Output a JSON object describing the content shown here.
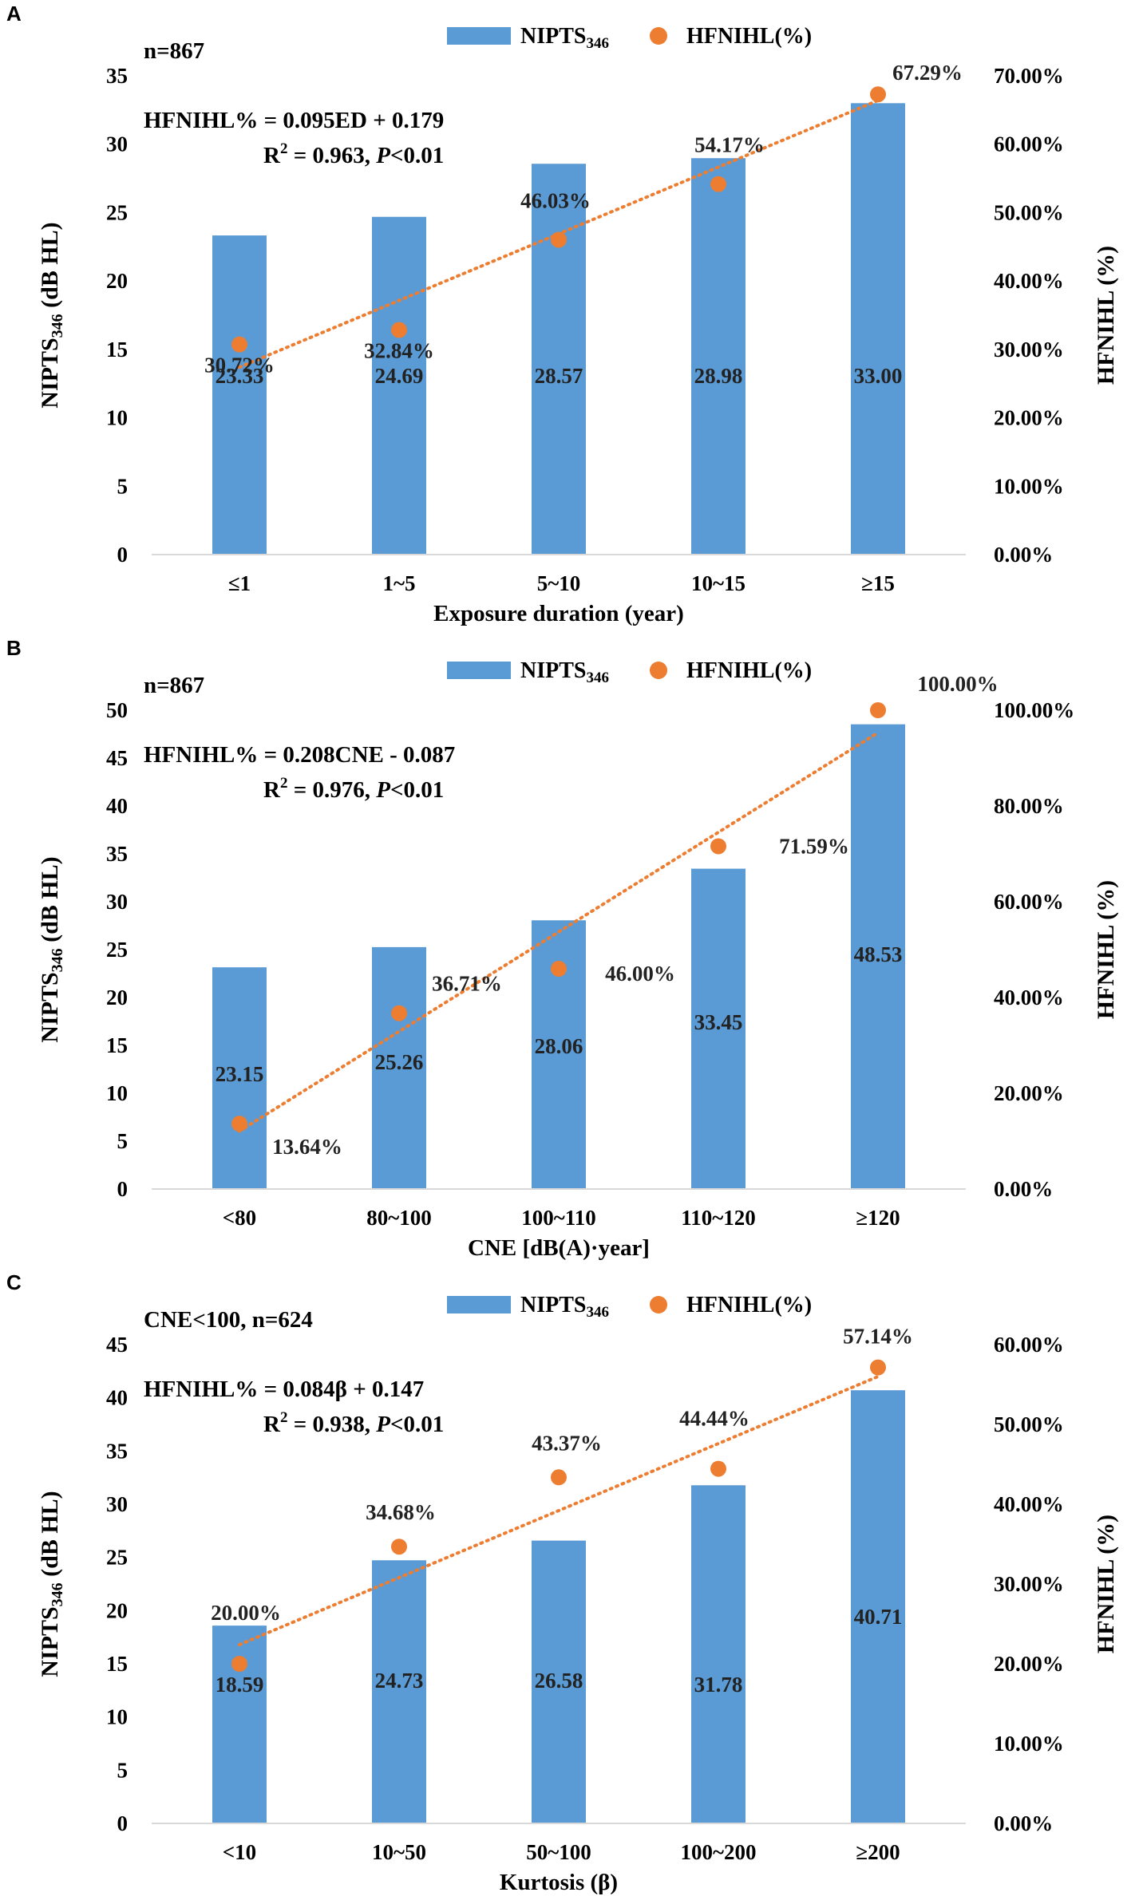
{
  "chart_data": [
    {
      "panel_label": "A",
      "type": "bar+line",
      "sample_text": "n=867",
      "equation": "HFNIHL% = 0.095ED + 0.179",
      "r2_label": "R",
      "r2_sup": "2",
      "r2_rest": " = 0.963, ",
      "p_italic": "P",
      "p_rest": "<0.01",
      "xlabel": "Exposure duration (year)",
      "ylabel_left_main": "NIPTS",
      "ylabel_left_sub": "346",
      "ylabel_left_rest": " (dB HL)",
      "ylabel_right": "HFNIHL (%)",
      "legend_bar_main": "NIPTS",
      "legend_bar_sub": "346",
      "legend_line": "HFNIHL(%)",
      "categories": [
        "≤1",
        "1~5",
        "5~10",
        "10~15",
        "≥15"
      ],
      "bar_values": [
        23.33,
        24.69,
        28.57,
        28.98,
        33.0
      ],
      "bar_labels": [
        "23.33",
        "24.69",
        "28.57",
        "28.98",
        "33.00"
      ],
      "line_values": [
        30.72,
        32.84,
        46.03,
        54.17,
        67.29
      ],
      "line_labels": [
        "30.72%",
        "32.84%",
        "46.03%",
        "54.17%",
        "67.29%"
      ],
      "trend": [
        27.4,
        66.4
      ],
      "ylim_left": [
        0,
        35
      ],
      "yticks_left": [
        "0",
        "5",
        "10",
        "15",
        "20",
        "25",
        "30",
        "35"
      ],
      "ylim_right": [
        0,
        70
      ],
      "yticks_right": [
        "0.00%",
        "10.00%",
        "20.00%",
        "30.00%",
        "40.00%",
        "50.00%",
        "60.00%",
        "70.00%"
      ],
      "colors": {
        "bar": "#5b9bd5",
        "line": "#ed7d31"
      }
    },
    {
      "panel_label": "B",
      "type": "bar+line",
      "sample_text": "n=867",
      "equation": "HFNIHL% = 0.208CNE - 0.087",
      "r2_label": "R",
      "r2_sup": "2",
      "r2_rest": " = 0.976, ",
      "p_italic": "P",
      "p_rest": "<0.01",
      "xlabel": "CNE [dB(A)·year]",
      "ylabel_left_main": "NIPTS",
      "ylabel_left_sub": "346",
      "ylabel_left_rest": " (dB HL)",
      "ylabel_right": "HFNIHL (%)",
      "legend_bar_main": "NIPTS",
      "legend_bar_sub": "346",
      "legend_line": "HFNIHL(%)",
      "categories": [
        "<80",
        "80~100",
        "100~110",
        "110~120",
        "≥120"
      ],
      "bar_values": [
        23.15,
        25.26,
        28.06,
        33.45,
        48.53
      ],
      "bar_labels": [
        "23.15",
        "25.26",
        "28.06",
        "33.45",
        "48.53"
      ],
      "line_values": [
        13.64,
        36.71,
        46.0,
        71.59,
        100.0
      ],
      "line_labels": [
        "13.64%",
        "36.71%",
        "46.00%",
        "71.59%",
        "100.00%"
      ],
      "trend": [
        12.1,
        95.3
      ],
      "ylim_left": [
        0,
        50
      ],
      "yticks_left": [
        "0",
        "5",
        "10",
        "15",
        "20",
        "25",
        "30",
        "35",
        "40",
        "45",
        "50"
      ],
      "ylim_right": [
        0,
        100
      ],
      "yticks_right": [
        "0.00%",
        "20.00%",
        "40.00%",
        "60.00%",
        "80.00%",
        "100.00%"
      ],
      "colors": {
        "bar": "#5b9bd5",
        "line": "#ed7d31"
      }
    },
    {
      "panel_label": "C",
      "type": "bar+line",
      "sample_text": "CNE<100, n=624",
      "equation": "HFNIHL% = 0.084β + 0.147",
      "r2_label": "R",
      "r2_sup": "2",
      "r2_rest": " = 0.938, ",
      "p_italic": "P",
      "p_rest": "<0.01",
      "xlabel": "Kurtosis (β)",
      "ylabel_left_main": "NIPTS",
      "ylabel_left_sub": "346",
      "ylabel_left_rest": " (dB HL)",
      "ylabel_right": "HFNIHL (%)",
      "legend_bar_main": "NIPTS",
      "legend_bar_sub": "346",
      "legend_line": "HFNIHL(%)",
      "categories": [
        "<10",
        "10~50",
        "50~100",
        "100~200",
        "≥200"
      ],
      "bar_values": [
        18.59,
        24.73,
        26.58,
        31.78,
        40.71
      ],
      "bar_labels": [
        "18.59",
        "24.73",
        "26.58",
        "31.78",
        "40.71"
      ],
      "line_values": [
        20.0,
        34.68,
        43.37,
        44.44,
        57.14
      ],
      "line_labels": [
        "20.00%",
        "34.68%",
        "43.37%",
        "44.44%",
        "57.14%"
      ],
      "trend": [
        22.4,
        56.0
      ],
      "ylim_left": [
        0,
        45
      ],
      "yticks_left": [
        "0",
        "5",
        "10",
        "15",
        "20",
        "25",
        "30",
        "35",
        "40",
        "45"
      ],
      "ylim_right": [
        0,
        60
      ],
      "yticks_right": [
        "0.00%",
        "10.00%",
        "20.00%",
        "30.00%",
        "40.00%",
        "50.00%",
        "60.00%"
      ],
      "colors": {
        "bar": "#5b9bd5",
        "line": "#ed7d31"
      }
    }
  ]
}
